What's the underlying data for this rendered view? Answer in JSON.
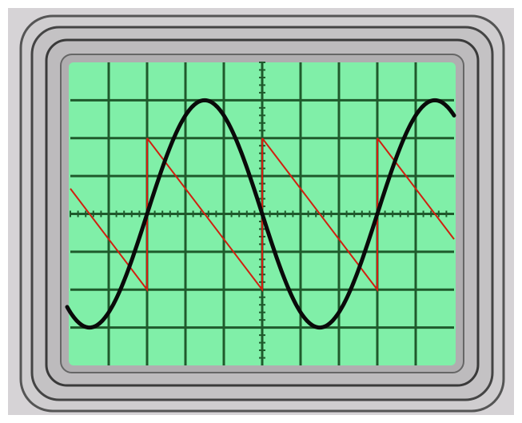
{
  "colors": {
    "screen": "#80efa8",
    "grid": "#1f5a2c",
    "bezel": "#c8c6c8",
    "bezel_line": "#4a4a4a",
    "sine_trace": "#0a0a0a",
    "sawtooth_trace": "#d02010"
  },
  "grid": {
    "divisions_x": 10,
    "divisions_y": 8
  },
  "traces": [
    {
      "type": "sine",
      "period_div": 6,
      "amplitude_div": 3,
      "phase_zero_crossing_up_div": 2
    },
    {
      "type": "sawtooth-falling",
      "period_div": 3,
      "amplitude_div": 2,
      "reset_div": 2
    }
  ]
}
